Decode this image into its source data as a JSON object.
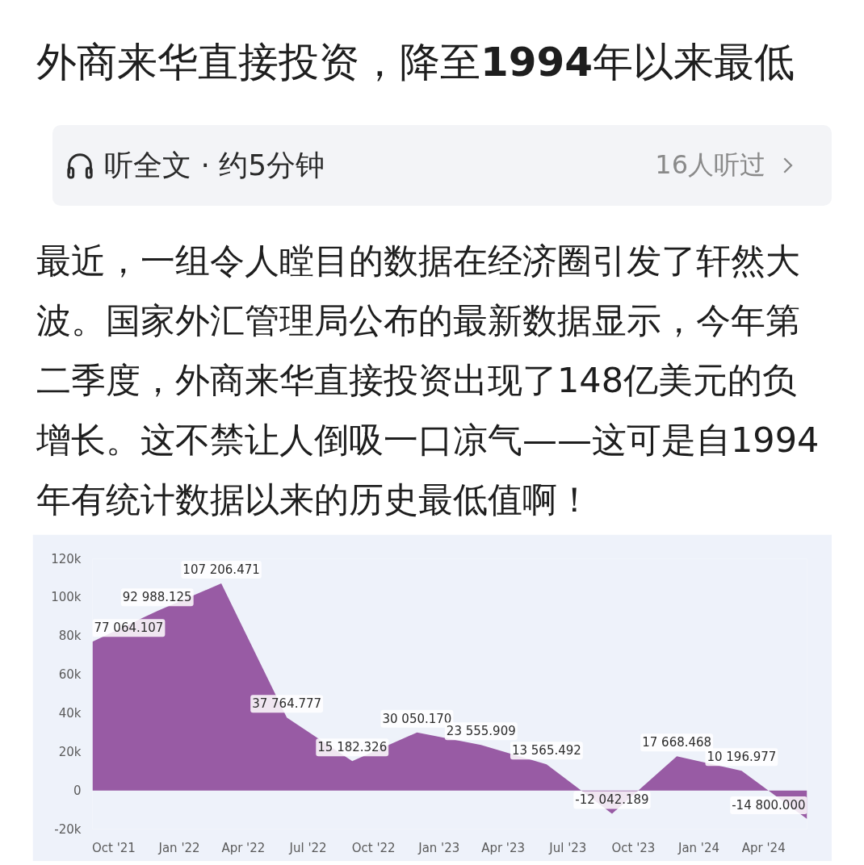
{
  "chart_data": {
    "type": "area",
    "title": "外商来华直接投资，降至1994年以来最低",
    "subtitle": "最近，一组令人瞠目的数据在经济圈引发了轩然大波。国家外汇管理局公布的最新数据显示，今年第二季度，外商来华直接投资出现了148亿美元的负增长。这不禁让人倒吸一口凉气——这可是自1994年有统计数据以来的历史最低值啊！",
    "annotations": [
      "听全文 · 约5分钟",
      "16人听过"
    ],
    "x": [
      "2021-09",
      "2021-12",
      "2022-03",
      "2022-06",
      "2022-09",
      "2022-12",
      "2023-03",
      "2023-06",
      "2023-09",
      "2023-12",
      "2024-03",
      "2024-06"
    ],
    "series": [
      {
        "color": "#985ba4",
        "values": [
          77064.107,
          92988.125,
          107206.471,
          37764.777,
          15182.326,
          30050.17,
          23555.909,
          13565.492,
          -12042.189,
          17668.468,
          10196.977,
          -14800
        ],
        "value_labels": [
          "77 064.107",
          "92 988.125",
          "107 206.471",
          "37 764.777",
          "15 182.326",
          "30 050.170",
          "23 555.909",
          "13 565.492",
          "-12 042.189",
          "17 668.468",
          "10 196.977",
          "-14 800.000"
        ]
      }
    ],
    "xlim": [
      "2021-09",
      "2024-06"
    ],
    "xticks": [
      {
        "value": "2021-10",
        "label": "Oct '21"
      },
      {
        "value": "2022-01",
        "label": "Jan '22"
      },
      {
        "value": "2022-04",
        "label": "Apr '22"
      },
      {
        "value": "2022-07",
        "label": "Jul '22"
      },
      {
        "value": "2022-10",
        "label": "Oct '22"
      },
      {
        "value": "2023-01",
        "label": "Jan '23"
      },
      {
        "value": "2023-04",
        "label": "Apr '23"
      },
      {
        "value": "2023-07",
        "label": "Jul '23"
      },
      {
        "value": "2023-10",
        "label": "Oct '23"
      },
      {
        "value": "2024-01",
        "label": "Jan '24"
      },
      {
        "value": "2024-04",
        "label": "Apr '24"
      }
    ],
    "ylim": [
      -20000,
      120000
    ],
    "yticks": [
      {
        "value": -20000,
        "label": "-20k"
      },
      0,
      {
        "value": 20000,
        "label": "20k"
      },
      {
        "value": 40000,
        "label": "40k"
      },
      {
        "value": 60000,
        "label": "60k"
      },
      {
        "value": 80000,
        "label": "80k"
      },
      {
        "value": 100000,
        "label": "100k"
      },
      {
        "value": 120000,
        "label": "120k"
      }
    ]
  }
}
